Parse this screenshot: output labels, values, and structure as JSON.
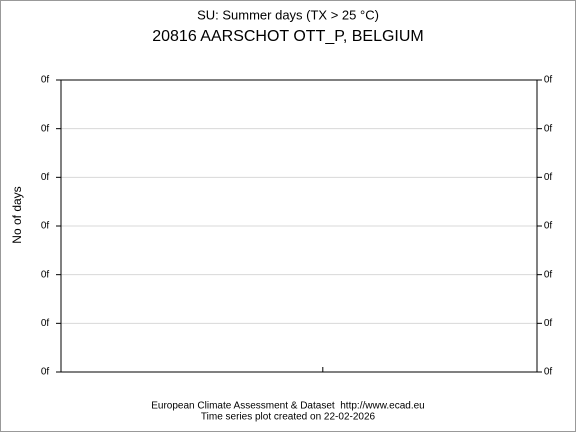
{
  "chart_data": {
    "type": "line",
    "title": "SU: Summer days (TX > 25 °C)",
    "subtitle": "20816 AARSCHOT OTT_P, BELGIUM",
    "y_label": "No of days",
    "footer": [
      "European Climate Assessment & Dataset  http://www.ecad.eu",
      "Time series plot created on 22-02-2026"
    ],
    "series": [],
    "xlim": [
      0,
      1
    ],
    "xticks": [
      0.55
    ],
    "ylim": [
      0,
      0.6
    ],
    "yticks": [
      {
        "value": 0,
        "label": "0f"
      },
      {
        "value": 0.1,
        "label": "0f"
      },
      {
        "value": 0.2,
        "label": "0f"
      },
      {
        "value": 0.3,
        "label": "0f"
      },
      {
        "value": 0.4,
        "label": "0f"
      },
      {
        "value": 0.5,
        "label": "0f"
      },
      {
        "value": 0.6,
        "label": "0f"
      }
    ],
    "grid": true
  }
}
